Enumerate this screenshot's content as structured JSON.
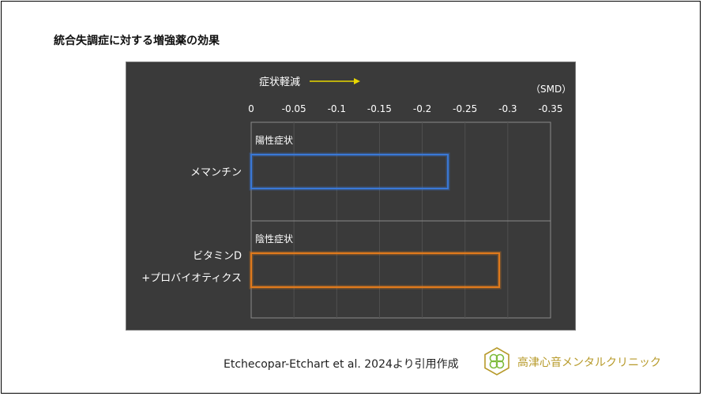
{
  "title": "統合失調症に対する増強薬の効果",
  "citation": "Etchecopar-Etchart et al. 2024より引用作成",
  "clinic_name": "高津心音メンタルクリニック",
  "logo_icon": "clover-logo-icon",
  "colors": {
    "panel_bg": "#3a3a3a",
    "memantine": "#3a78d6",
    "vitamin_d": "#e07a1c",
    "arrow": "#e8d800",
    "logo": "#b79a2a"
  },
  "chart_data": {
    "type": "bar",
    "orientation": "horizontal",
    "direction_label": "症状軽減",
    "unit_label": "（SMD）",
    "xlim": [
      0,
      -0.35
    ],
    "ticks": [
      0,
      -0.05,
      -0.1,
      -0.15,
      -0.2,
      -0.25,
      -0.3,
      -0.35
    ],
    "tick_labels": [
      "0",
      "-0.05",
      "-0.1",
      "-0.15",
      "-0.2",
      "-0.25",
      "-0.3",
      "-0.35"
    ],
    "grid": true,
    "sections": [
      {
        "section_label": "陽性症状",
        "category": [
          "メマンチン"
        ],
        "value": -0.23,
        "color": "#3a78d6"
      },
      {
        "section_label": "陰性症状",
        "category": [
          "ビタミンD",
          "+プロバイオティクス"
        ],
        "value": -0.29,
        "color": "#e07a1c"
      }
    ]
  }
}
